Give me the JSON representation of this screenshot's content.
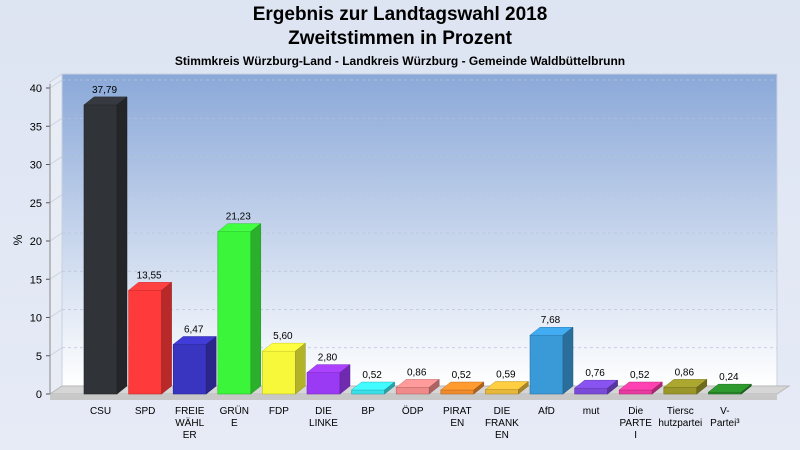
{
  "header": {
    "title_line1": "Ergebnis zur Landtagswahl 2018",
    "title_line2": "Zweitstimmen in Prozent",
    "subtitle": "Stimmkreis Würzburg-Land - Landkreis Würzburg - Gemeinde Waldbüttelbrunn"
  },
  "chart_data": {
    "type": "bar",
    "title": "Ergebnis zur Landtagswahl 2018 Zweitstimmen in Prozent",
    "subtitle": "Stimmkreis Würzburg-Land - Landkreis Würzburg - Gemeinde Waldbüttelbrunn",
    "ylabel": "%",
    "xlabel": "",
    "ylim": [
      0,
      40
    ],
    "yticks": [
      0,
      5,
      10,
      15,
      20,
      25,
      30,
      35,
      40
    ],
    "grid": true,
    "legend": "none",
    "categories": [
      "CSU",
      "SPD",
      "FREIE WÄHLER",
      "GRÜNE",
      "FDP",
      "DIE LINKE",
      "BP",
      "ÖDP",
      "PIRATEN",
      "DIE FRANKEN",
      "AfD",
      "mut",
      "Die PARTEI",
      "Tierschutzpartei",
      "V-Partei³"
    ],
    "category_label_lines": [
      [
        "CSU"
      ],
      [
        "SPD"
      ],
      [
        "FREIE",
        "WÄHL",
        "ER"
      ],
      [
        "GRÜN",
        "E"
      ],
      [
        "FDP"
      ],
      [
        "DIE",
        "LINKE"
      ],
      [
        "BP"
      ],
      [
        "ÖDP"
      ],
      [
        "PIRAT",
        "EN"
      ],
      [
        "DIE",
        "FRANK",
        "EN"
      ],
      [
        "AfD"
      ],
      [
        "mut"
      ],
      [
        "Die",
        "PARTE",
        "I"
      ],
      [
        "Tiersc",
        "hutzpartei"
      ],
      [
        "V-",
        "Partei³"
      ]
    ],
    "values": [
      37.79,
      13.55,
      6.47,
      21.23,
      5.6,
      2.8,
      0.52,
      0.86,
      0.52,
      0.59,
      7.68,
      0.76,
      0.52,
      0.86,
      0.24
    ],
    "value_labels": [
      "37,79",
      "13,55",
      "6,47",
      "21,23",
      "5,60",
      "2,80",
      "0,52",
      "0,86",
      "0,52",
      "0,59",
      "7,68",
      "0,76",
      "0,52",
      "0,86",
      "0,24"
    ],
    "colors": [
      "#303338",
      "#ff3a3a",
      "#3a35c0",
      "#3af53a",
      "#f8f83a",
      "#9a3af5",
      "#3ae0e8",
      "#f08a8a",
      "#f08a2a",
      "#e8b83a",
      "#3a9ad8",
      "#7a4ad8",
      "#e83aa0",
      "#9a962a",
      "#2a8a2a"
    ]
  }
}
